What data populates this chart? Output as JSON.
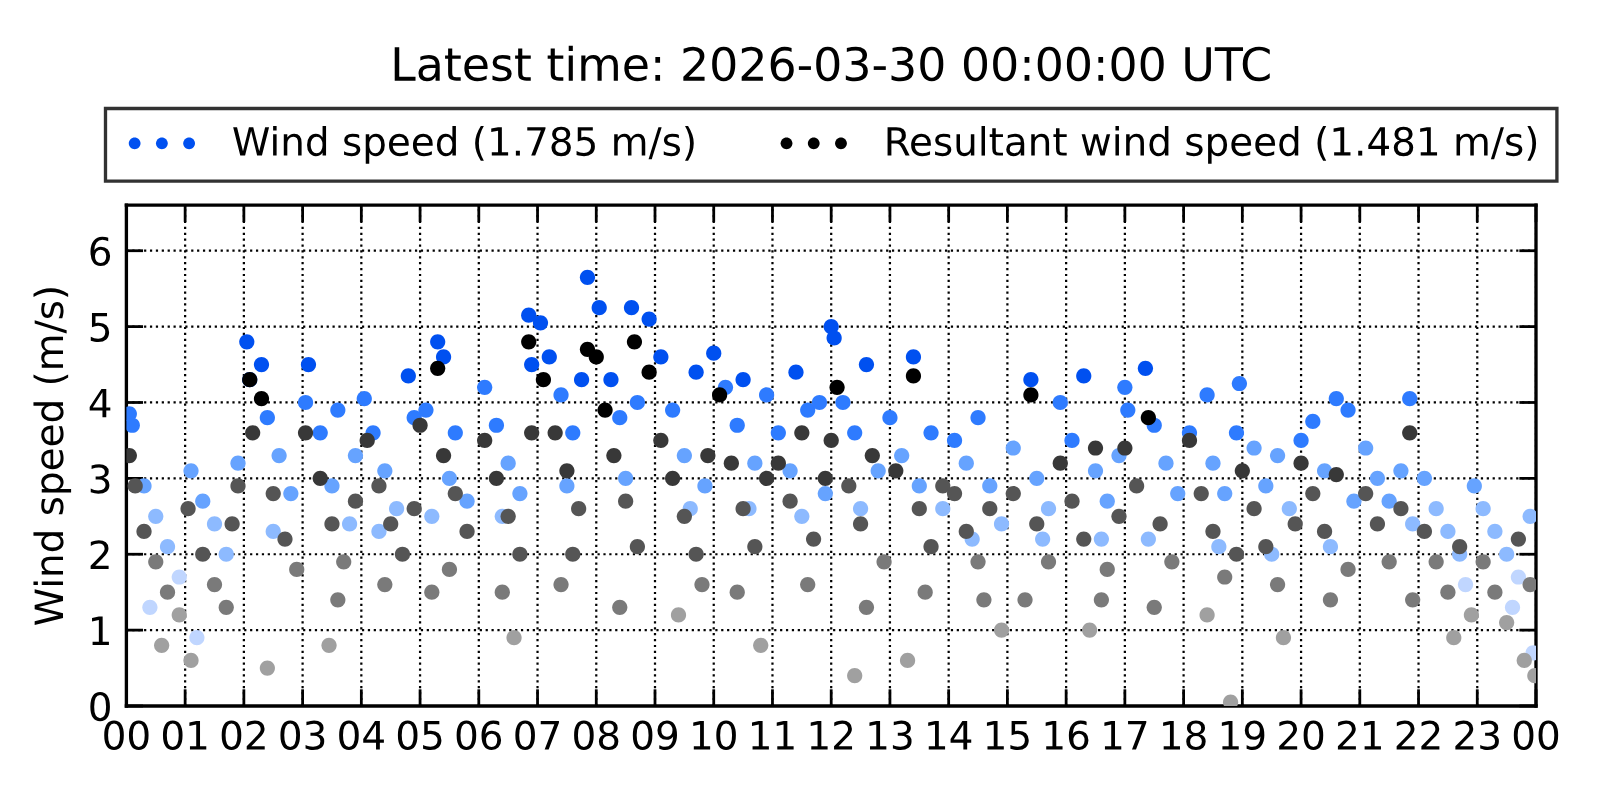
{
  "chart_data": {
    "type": "scatter",
    "title": "Latest time: 2026-03-30 00:00:00 UTC",
    "ylabel": "Wind speed (m/s)",
    "xlim": [
      0,
      24
    ],
    "ylim": [
      0,
      6.6
    ],
    "xticks": [
      {
        "value": 0,
        "label": "00"
      },
      {
        "value": 1,
        "label": "01"
      },
      {
        "value": 2,
        "label": "02"
      },
      {
        "value": 3,
        "label": "03"
      },
      {
        "value": 4,
        "label": "04"
      },
      {
        "value": 5,
        "label": "05"
      },
      {
        "value": 6,
        "label": "06"
      },
      {
        "value": 7,
        "label": "07"
      },
      {
        "value": 8,
        "label": "08"
      },
      {
        "value": 9,
        "label": "09"
      },
      {
        "value": 10,
        "label": "10"
      },
      {
        "value": 11,
        "label": "11"
      },
      {
        "value": 12,
        "label": "12"
      },
      {
        "value": 13,
        "label": "13"
      },
      {
        "value": 14,
        "label": "14"
      },
      {
        "value": 15,
        "label": "15"
      },
      {
        "value": 16,
        "label": "16"
      },
      {
        "value": 17,
        "label": "17"
      },
      {
        "value": 18,
        "label": "18"
      },
      {
        "value": 19,
        "label": "19"
      },
      {
        "value": 20,
        "label": "20"
      },
      {
        "value": 21,
        "label": "21"
      },
      {
        "value": 22,
        "label": "22"
      },
      {
        "value": 23,
        "label": "23"
      },
      {
        "value": 24,
        "label": "00"
      }
    ],
    "yticks": [
      0,
      1,
      2,
      3,
      4,
      5,
      6
    ],
    "grid": true,
    "legend": "top",
    "marker": "circle",
    "series": [
      {
        "name": "Wind speed (1.785 m/s)",
        "color": "#0050f0",
        "x": [
          0.05,
          0.1,
          0.3,
          0.5,
          0.7,
          0.9,
          0.4,
          1.1,
          1.3,
          1.5,
          1.7,
          1.9,
          1.2,
          2.05,
          2.1,
          2.3,
          2.4,
          2.6,
          2.8,
          2.5,
          3.1,
          3.05,
          3.3,
          3.6,
          3.5,
          3.8,
          3.9,
          4.05,
          4.2,
          4.4,
          4.6,
          4.8,
          4.9,
          4.3,
          5.3,
          5.4,
          5.1,
          5.6,
          5.5,
          5.8,
          5.2,
          6.1,
          6.3,
          6.5,
          6.7,
          6.85,
          6.9,
          6.4,
          7.05,
          7.2,
          7.4,
          7.6,
          7.85,
          7.75,
          7.5,
          8.05,
          8.25,
          8.4,
          8.6,
          8.7,
          8.9,
          8.5,
          9.1,
          9.3,
          9.5,
          9.7,
          9.85,
          9.6,
          10.0,
          10.2,
          10.4,
          10.5,
          10.7,
          10.9,
          10.6,
          11.1,
          11.3,
          11.4,
          11.6,
          11.8,
          11.9,
          11.5,
          12.0,
          12.05,
          12.2,
          12.4,
          12.6,
          12.8,
          12.5,
          13.0,
          13.2,
          13.4,
          13.5,
          13.7,
          13.9,
          14.1,
          14.3,
          14.5,
          14.7,
          14.9,
          14.4,
          15.1,
          15.4,
          15.5,
          15.7,
          15.9,
          15.6,
          16.1,
          16.3,
          16.5,
          16.7,
          16.9,
          16.6,
          17.0,
          17.05,
          17.35,
          17.5,
          17.7,
          17.9,
          17.4,
          18.1,
          18.4,
          18.5,
          18.7,
          18.9,
          18.6,
          18.95,
          19.2,
          19.4,
          19.6,
          19.8,
          19.5,
          20.0,
          20.2,
          20.4,
          20.6,
          20.8,
          20.9,
          20.5,
          21.1,
          21.3,
          21.5,
          21.7,
          21.85,
          21.9,
          22.1,
          22.3,
          22.5,
          22.7,
          22.95,
          22.8,
          23.1,
          23.3,
          23.5,
          23.7,
          23.9,
          23.95,
          23.6
        ],
        "values": [
          3.85,
          3.7,
          2.9,
          2.5,
          2.1,
          1.7,
          1.3,
          3.1,
          2.7,
          2.4,
          2.0,
          3.2,
          0.9,
          4.8,
          4.3,
          4.5,
          3.8,
          3.3,
          2.8,
          2.3,
          4.5,
          4.0,
          3.6,
          3.9,
          2.9,
          2.4,
          3.3,
          4.05,
          3.6,
          3.1,
          2.6,
          4.35,
          3.8,
          2.3,
          4.8,
          4.6,
          3.9,
          3.6,
          3.0,
          2.7,
          2.5,
          4.2,
          3.7,
          3.2,
          2.8,
          5.15,
          4.5,
          2.5,
          5.05,
          4.6,
          4.1,
          3.6,
          5.65,
          4.3,
          2.9,
          5.25,
          4.3,
          3.8,
          5.25,
          4.0,
          5.1,
          3.0,
          4.6,
          3.9,
          3.3,
          4.4,
          2.9,
          2.6,
          4.65,
          4.2,
          3.7,
          4.3,
          3.2,
          4.1,
          2.6,
          3.6,
          3.1,
          4.4,
          3.9,
          4.0,
          2.8,
          2.5,
          5.0,
          4.85,
          4.0,
          3.6,
          4.5,
          3.1,
          2.6,
          3.8,
          3.3,
          4.6,
          2.9,
          3.6,
          2.6,
          3.5,
          3.2,
          3.8,
          2.9,
          2.4,
          2.2,
          3.4,
          4.3,
          3.0,
          2.6,
          4.0,
          2.2,
          3.5,
          4.35,
          3.1,
          2.7,
          3.3,
          2.2,
          4.2,
          3.9,
          4.45,
          3.7,
          3.2,
          2.8,
          2.2,
          3.6,
          4.1,
          3.2,
          2.8,
          3.6,
          2.1,
          4.25,
          3.4,
          2.9,
          3.3,
          2.6,
          2.0,
          3.5,
          3.75,
          3.1,
          4.05,
          3.9,
          2.7,
          2.1,
          3.4,
          3.0,
          2.7,
          3.1,
          4.05,
          2.4,
          3.0,
          2.6,
          2.3,
          2.0,
          2.9,
          1.6,
          2.6,
          2.3,
          2.0,
          1.7,
          2.5,
          0.7,
          1.3
        ],
        "colors": [
          "#2e7bff",
          "#2e7bff",
          "#66a3ff",
          "#8dbaff",
          "#8dbaff",
          "#c0d6ff",
          "#c0d6ff",
          "#66a3ff",
          "#66a3ff",
          "#8dbaff",
          "#8dbaff",
          "#66a3ff",
          "#c0d6ff",
          "#0050f0",
          "#0050f0",
          "#0050f0",
          "#2e7bff",
          "#66a3ff",
          "#66a3ff",
          "#8dbaff",
          "#0050f0",
          "#2e7bff",
          "#2e7bff",
          "#2e7bff",
          "#66a3ff",
          "#8dbaff",
          "#66a3ff",
          "#2e7bff",
          "#2e7bff",
          "#66a3ff",
          "#8dbaff",
          "#0050f0",
          "#2e7bff",
          "#8dbaff",
          "#0050f0",
          "#0050f0",
          "#2e7bff",
          "#2e7bff",
          "#66a3ff",
          "#66a3ff",
          "#8dbaff",
          "#2e7bff",
          "#2e7bff",
          "#66a3ff",
          "#66a3ff",
          "#0050f0",
          "#0050f0",
          "#8dbaff",
          "#0050f0",
          "#0050f0",
          "#2e7bff",
          "#2e7bff",
          "#0050f0",
          "#0050f0",
          "#66a3ff",
          "#0050f0",
          "#0050f0",
          "#2e7bff",
          "#0050f0",
          "#2e7bff",
          "#0050f0",
          "#66a3ff",
          "#0050f0",
          "#2e7bff",
          "#66a3ff",
          "#0050f0",
          "#66a3ff",
          "#8dbaff",
          "#0050f0",
          "#2e7bff",
          "#2e7bff",
          "#0050f0",
          "#66a3ff",
          "#2e7bff",
          "#8dbaff",
          "#2e7bff",
          "#66a3ff",
          "#0050f0",
          "#2e7bff",
          "#2e7bff",
          "#66a3ff",
          "#8dbaff",
          "#0050f0",
          "#0050f0",
          "#2e7bff",
          "#2e7bff",
          "#0050f0",
          "#66a3ff",
          "#8dbaff",
          "#2e7bff",
          "#66a3ff",
          "#0050f0",
          "#66a3ff",
          "#2e7bff",
          "#8dbaff",
          "#2e7bff",
          "#66a3ff",
          "#2e7bff",
          "#66a3ff",
          "#8dbaff",
          "#8dbaff",
          "#66a3ff",
          "#0050f0",
          "#66a3ff",
          "#8dbaff",
          "#2e7bff",
          "#8dbaff",
          "#2e7bff",
          "#0050f0",
          "#66a3ff",
          "#66a3ff",
          "#66a3ff",
          "#8dbaff",
          "#2e7bff",
          "#2e7bff",
          "#0050f0",
          "#2e7bff",
          "#66a3ff",
          "#66a3ff",
          "#8dbaff",
          "#2e7bff",
          "#2e7bff",
          "#66a3ff",
          "#66a3ff",
          "#2e7bff",
          "#8dbaff",
          "#2e7bff",
          "#66a3ff",
          "#66a3ff",
          "#66a3ff",
          "#8dbaff",
          "#8dbaff",
          "#2e7bff",
          "#2e7bff",
          "#66a3ff",
          "#2e7bff",
          "#2e7bff",
          "#66a3ff",
          "#8dbaff",
          "#66a3ff",
          "#66a3ff",
          "#66a3ff",
          "#66a3ff",
          "#2e7bff",
          "#8dbaff",
          "#66a3ff",
          "#8dbaff",
          "#8dbaff",
          "#8dbaff",
          "#66a3ff",
          "#c0d6ff",
          "#8dbaff",
          "#8dbaff",
          "#8dbaff",
          "#c0d6ff",
          "#8dbaff",
          "#c0d6ff",
          "#c0d6ff"
        ]
      },
      {
        "name": "Resultant wind speed (1.481 m/s)",
        "color": "#000000",
        "x": [
          0.05,
          0.15,
          0.3,
          0.5,
          0.7,
          0.9,
          0.6,
          1.05,
          1.1,
          1.3,
          1.5,
          1.7,
          1.9,
          1.8,
          2.1,
          2.3,
          2.15,
          2.5,
          2.7,
          2.9,
          2.4,
          3.05,
          3.3,
          3.5,
          3.45,
          3.7,
          3.9,
          3.6,
          4.1,
          4.3,
          4.5,
          4.7,
          4.9,
          4.4,
          5.3,
          5.0,
          5.4,
          5.6,
          5.8,
          5.5,
          5.2,
          6.1,
          6.3,
          6.5,
          6.6,
          6.7,
          6.85,
          6.9,
          6.4,
          7.1,
          7.3,
          7.5,
          7.7,
          7.85,
          7.6,
          7.4,
          8.0,
          8.15,
          8.3,
          8.5,
          8.65,
          8.9,
          8.7,
          8.4,
          9.1,
          9.3,
          9.5,
          9.7,
          9.9,
          9.4,
          9.8,
          10.1,
          10.3,
          10.5,
          10.7,
          10.8,
          10.9,
          10.4,
          11.1,
          11.3,
          11.5,
          11.7,
          11.9,
          11.6,
          12.1,
          12.0,
          12.3,
          12.4,
          12.5,
          12.7,
          12.9,
          12.6,
          13.1,
          13.4,
          13.3,
          13.5,
          13.7,
          13.9,
          13.6,
          14.1,
          14.3,
          14.5,
          14.7,
          14.9,
          14.6,
          15.1,
          15.4,
          15.5,
          15.7,
          15.9,
          15.3,
          16.1,
          16.3,
          16.5,
          16.7,
          16.9,
          16.4,
          16.6,
          17.0,
          17.4,
          17.2,
          17.6,
          17.8,
          17.5,
          18.1,
          18.3,
          18.5,
          18.7,
          18.8,
          18.9,
          18.4,
          19.0,
          19.2,
          19.4,
          19.6,
          19.7,
          19.9,
          20.0,
          20.2,
          20.4,
          20.6,
          20.8,
          20.5,
          21.1,
          21.3,
          21.5,
          21.7,
          21.85,
          21.9,
          22.1,
          22.3,
          22.5,
          22.7,
          22.9,
          22.6,
          23.1,
          23.3,
          23.5,
          23.7,
          23.9,
          23.8,
          23.98
        ],
        "values": [
          3.3,
          2.9,
          2.3,
          1.9,
          1.5,
          1.2,
          0.8,
          2.6,
          0.6,
          2.0,
          1.6,
          1.3,
          2.9,
          2.4,
          4.3,
          4.05,
          3.6,
          2.8,
          2.2,
          1.8,
          0.5,
          3.6,
          3.0,
          2.4,
          0.8,
          1.9,
          2.7,
          1.4,
          3.5,
          2.9,
          2.4,
          2.0,
          2.6,
          1.6,
          4.45,
          3.7,
          3.3,
          2.8,
          2.3,
          1.8,
          1.5,
          3.5,
          3.0,
          2.5,
          0.9,
          2.0,
          4.8,
          3.6,
          1.5,
          4.3,
          3.6,
          3.1,
          2.6,
          4.7,
          2.0,
          1.6,
          4.6,
          3.9,
          3.3,
          2.7,
          4.8,
          4.4,
          2.1,
          1.3,
          3.5,
          3.0,
          2.5,
          2.0,
          3.3,
          1.2,
          1.6,
          4.1,
          3.2,
          2.6,
          2.1,
          0.8,
          3.0,
          1.5,
          3.2,
          2.7,
          3.6,
          2.2,
          3.0,
          1.6,
          4.2,
          3.5,
          2.9,
          0.4,
          2.4,
          3.3,
          1.9,
          1.3,
          3.1,
          4.35,
          0.6,
          2.6,
          2.1,
          2.9,
          1.5,
          2.8,
          2.3,
          1.9,
          2.6,
          1.0,
          1.4,
          2.8,
          4.1,
          2.4,
          1.9,
          3.2,
          1.4,
          2.7,
          2.2,
          3.4,
          1.8,
          2.5,
          1.0,
          1.4,
          3.4,
          3.8,
          2.9,
          2.4,
          1.9,
          1.3,
          3.5,
          2.8,
          2.3,
          1.7,
          0.05,
          2.0,
          1.2,
          3.1,
          2.6,
          2.1,
          1.6,
          0.9,
          2.4,
          3.2,
          2.8,
          2.3,
          3.05,
          1.8,
          1.4,
          2.8,
          2.4,
          1.9,
          2.6,
          3.6,
          1.4,
          2.3,
          1.9,
          1.5,
          2.1,
          1.2,
          0.9,
          1.9,
          1.5,
          1.1,
          2.2,
          1.6,
          0.6,
          0.4
        ],
        "colors": [
          "#383838",
          "#555555",
          "#555555",
          "#7a7a7a",
          "#7a7a7a",
          "#a0a0a0",
          "#a0a0a0",
          "#555555",
          "#a0a0a0",
          "#555555",
          "#7a7a7a",
          "#7a7a7a",
          "#555555",
          "#555555",
          "#000000",
          "#000000",
          "#383838",
          "#555555",
          "#555555",
          "#7a7a7a",
          "#a0a0a0",
          "#383838",
          "#383838",
          "#555555",
          "#a0a0a0",
          "#7a7a7a",
          "#555555",
          "#7a7a7a",
          "#383838",
          "#555555",
          "#555555",
          "#555555",
          "#555555",
          "#7a7a7a",
          "#000000",
          "#383838",
          "#383838",
          "#555555",
          "#555555",
          "#7a7a7a",
          "#7a7a7a",
          "#383838",
          "#383838",
          "#555555",
          "#a0a0a0",
          "#555555",
          "#000000",
          "#383838",
          "#7a7a7a",
          "#000000",
          "#383838",
          "#383838",
          "#555555",
          "#000000",
          "#555555",
          "#7a7a7a",
          "#000000",
          "#000000",
          "#383838",
          "#555555",
          "#000000",
          "#000000",
          "#555555",
          "#7a7a7a",
          "#383838",
          "#383838",
          "#555555",
          "#555555",
          "#383838",
          "#a0a0a0",
          "#7a7a7a",
          "#000000",
          "#383838",
          "#555555",
          "#555555",
          "#a0a0a0",
          "#383838",
          "#7a7a7a",
          "#383838",
          "#555555",
          "#383838",
          "#555555",
          "#383838",
          "#7a7a7a",
          "#000000",
          "#383838",
          "#555555",
          "#a0a0a0",
          "#555555",
          "#383838",
          "#7a7a7a",
          "#7a7a7a",
          "#383838",
          "#000000",
          "#a0a0a0",
          "#555555",
          "#555555",
          "#555555",
          "#7a7a7a",
          "#555555",
          "#555555",
          "#7a7a7a",
          "#555555",
          "#a0a0a0",
          "#7a7a7a",
          "#555555",
          "#000000",
          "#555555",
          "#7a7a7a",
          "#383838",
          "#7a7a7a",
          "#555555",
          "#555555",
          "#383838",
          "#7a7a7a",
          "#555555",
          "#a0a0a0",
          "#7a7a7a",
          "#383838",
          "#000000",
          "#555555",
          "#555555",
          "#7a7a7a",
          "#7a7a7a",
          "#383838",
          "#555555",
          "#555555",
          "#7a7a7a",
          "#a0a0a0",
          "#555555",
          "#a0a0a0",
          "#383838",
          "#555555",
          "#555555",
          "#7a7a7a",
          "#a0a0a0",
          "#555555",
          "#383838",
          "#555555",
          "#555555",
          "#383838",
          "#7a7a7a",
          "#7a7a7a",
          "#555555",
          "#555555",
          "#7a7a7a",
          "#555555",
          "#383838",
          "#7a7a7a",
          "#555555",
          "#7a7a7a",
          "#7a7a7a",
          "#555555",
          "#a0a0a0",
          "#a0a0a0",
          "#7a7a7a",
          "#7a7a7a",
          "#a0a0a0",
          "#555555",
          "#7a7a7a",
          "#a0a0a0",
          "#a0a0a0"
        ]
      }
    ]
  }
}
